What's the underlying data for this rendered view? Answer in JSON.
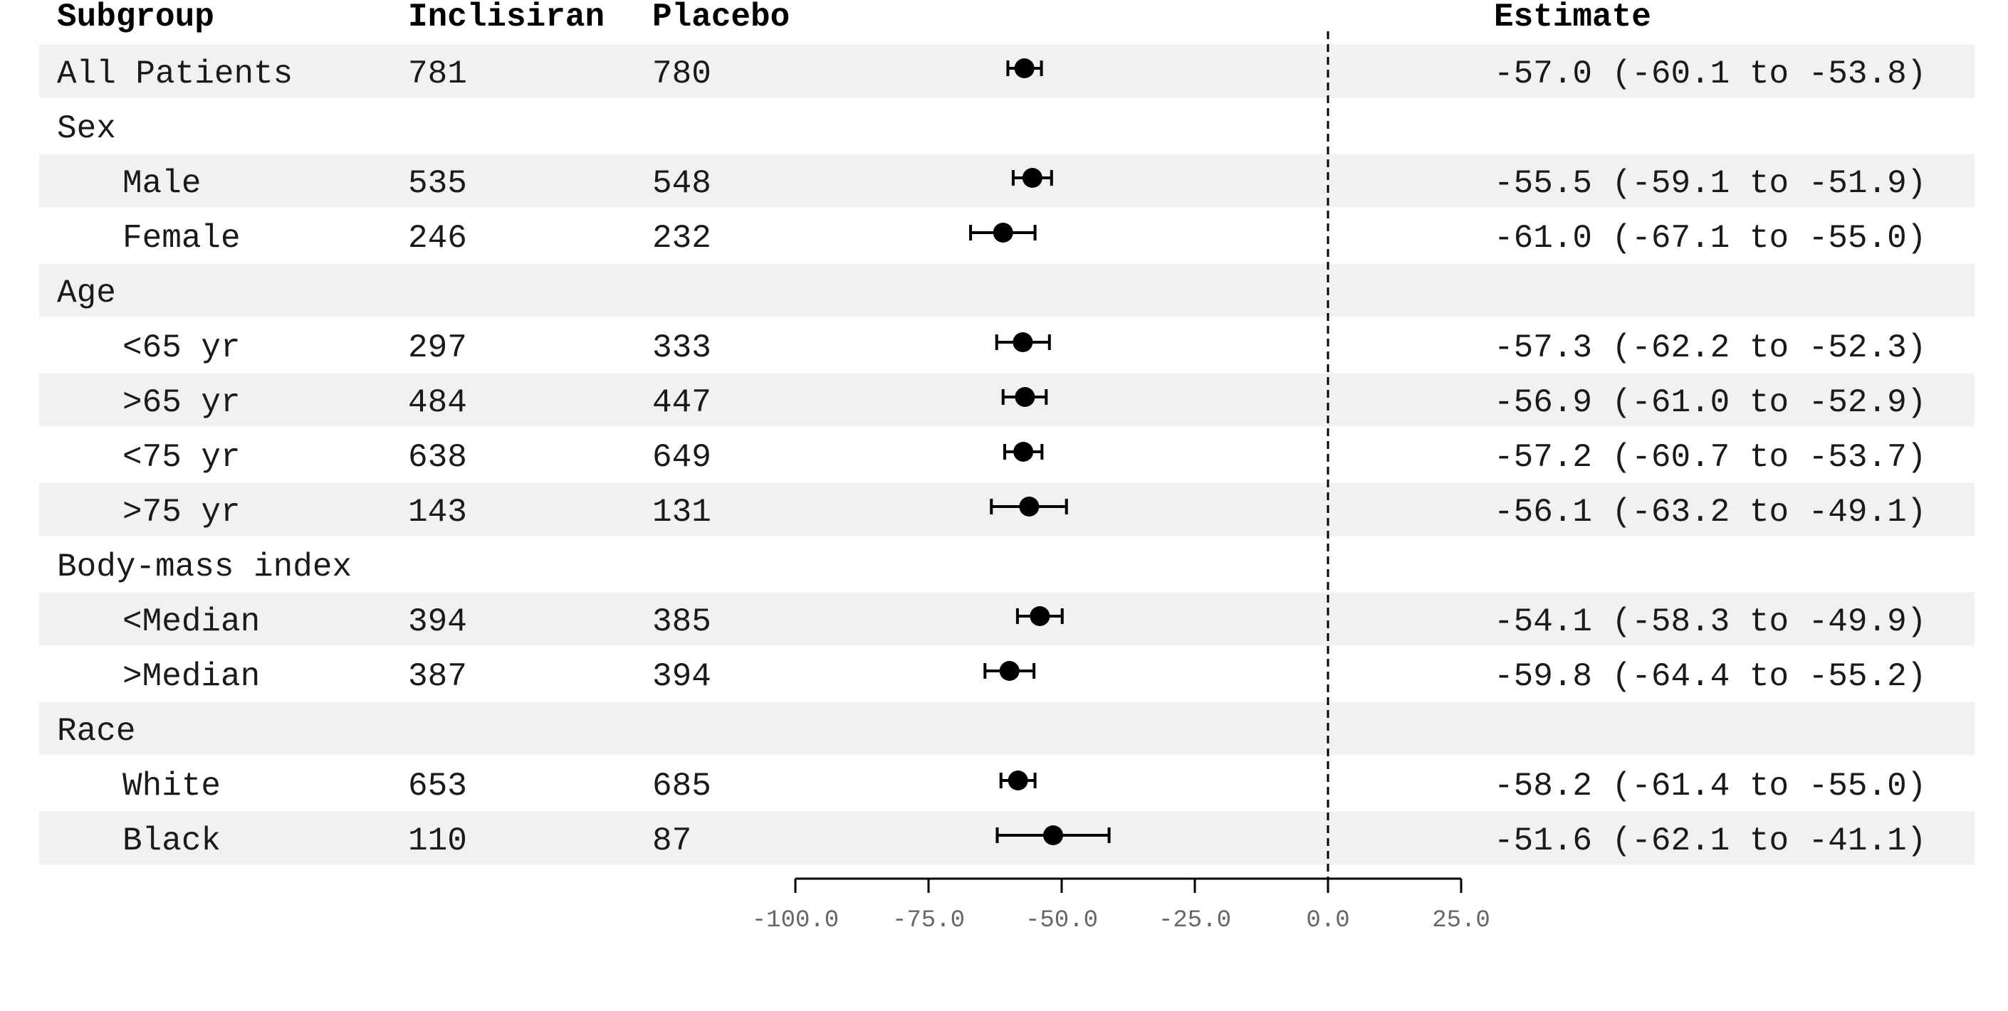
{
  "colors": {
    "band": "#eff2f1",
    "point": "#000000",
    "axis": "#000000",
    "reference_line": "#000000"
  },
  "headers": {
    "subgroup": "Subgroup",
    "inclisiran": "Inclisiran",
    "placebo": "Placebo",
    "estimate": "Estimate"
  },
  "chart_data": {
    "type": "forest",
    "xlim": [
      -100,
      25
    ],
    "ticks": [
      -100,
      -75,
      -50,
      -25,
      0,
      25
    ],
    "tick_labels": [
      "-100.0",
      "-75.0",
      "-50.0",
      "-25.0",
      "0.0",
      "25.0"
    ],
    "reference_value": 0,
    "rows": [
      {
        "label": "All Patients",
        "indent": 0,
        "inclisiran": "781",
        "placebo": "780",
        "estimate": -57.0,
        "lower": -60.1,
        "upper": -53.8,
        "estimate_text": "-57.0 (-60.1 to -53.8)",
        "band": true
      },
      {
        "label": "Sex",
        "indent": 0,
        "inclisiran": "",
        "placebo": "",
        "estimate": null,
        "lower": null,
        "upper": null,
        "estimate_text": "",
        "band": false
      },
      {
        "label": "Male",
        "indent": 1,
        "inclisiran": "535",
        "placebo": "548",
        "estimate": -55.5,
        "lower": -59.1,
        "upper": -51.9,
        "estimate_text": "-55.5 (-59.1 to -51.9)",
        "band": true
      },
      {
        "label": "Female",
        "indent": 1,
        "inclisiran": "246",
        "placebo": "232",
        "estimate": -61.0,
        "lower": -67.1,
        "upper": -55.0,
        "estimate_text": "-61.0 (-67.1 to -55.0)",
        "band": false
      },
      {
        "label": "Age",
        "indent": 0,
        "inclisiran": "",
        "placebo": "",
        "estimate": null,
        "lower": null,
        "upper": null,
        "estimate_text": "",
        "band": true
      },
      {
        "label": "<65 yr",
        "indent": 1,
        "inclisiran": "297",
        "placebo": "333",
        "estimate": -57.3,
        "lower": -62.2,
        "upper": -52.3,
        "estimate_text": "-57.3 (-62.2 to -52.3)",
        "band": false
      },
      {
        "label": ">65 yr",
        "indent": 1,
        "inclisiran": "484",
        "placebo": "447",
        "estimate": -56.9,
        "lower": -61.0,
        "upper": -52.9,
        "estimate_text": "-56.9 (-61.0 to -52.9)",
        "band": true
      },
      {
        "label": "<75 yr",
        "indent": 1,
        "inclisiran": "638",
        "placebo": "649",
        "estimate": -57.2,
        "lower": -60.7,
        "upper": -53.7,
        "estimate_text": "-57.2 (-60.7 to -53.7)",
        "band": false
      },
      {
        "label": ">75 yr",
        "indent": 1,
        "inclisiran": "143",
        "placebo": "131",
        "estimate": -56.1,
        "lower": -63.2,
        "upper": -49.1,
        "estimate_text": "-56.1 (-63.2 to -49.1)",
        "band": true
      },
      {
        "label": "Body-mass index",
        "indent": 0,
        "inclisiran": "",
        "placebo": "",
        "estimate": null,
        "lower": null,
        "upper": null,
        "estimate_text": "",
        "band": false
      },
      {
        "label": "<Median",
        "indent": 1,
        "inclisiran": "394",
        "placebo": "385",
        "estimate": -54.1,
        "lower": -58.3,
        "upper": -49.9,
        "estimate_text": "-54.1 (-58.3 to -49.9)",
        "band": true
      },
      {
        "label": ">Median",
        "indent": 1,
        "inclisiran": "387",
        "placebo": "394",
        "estimate": -59.8,
        "lower": -64.4,
        "upper": -55.2,
        "estimate_text": "-59.8 (-64.4 to -55.2)",
        "band": false
      },
      {
        "label": "Race",
        "indent": 0,
        "inclisiran": "",
        "placebo": "",
        "estimate": null,
        "lower": null,
        "upper": null,
        "estimate_text": "",
        "band": true
      },
      {
        "label": "White",
        "indent": 1,
        "inclisiran": "653",
        "placebo": "685",
        "estimate": -58.2,
        "lower": -61.4,
        "upper": -55.0,
        "estimate_text": "-58.2 (-61.4 to -55.0)",
        "band": false
      },
      {
        "label": "Black",
        "indent": 1,
        "inclisiran": "110",
        "placebo": "87",
        "estimate": -51.6,
        "lower": -62.1,
        "upper": -41.1,
        "estimate_text": "-51.6 (-62.1 to -41.1)",
        "band": true
      }
    ]
  }
}
